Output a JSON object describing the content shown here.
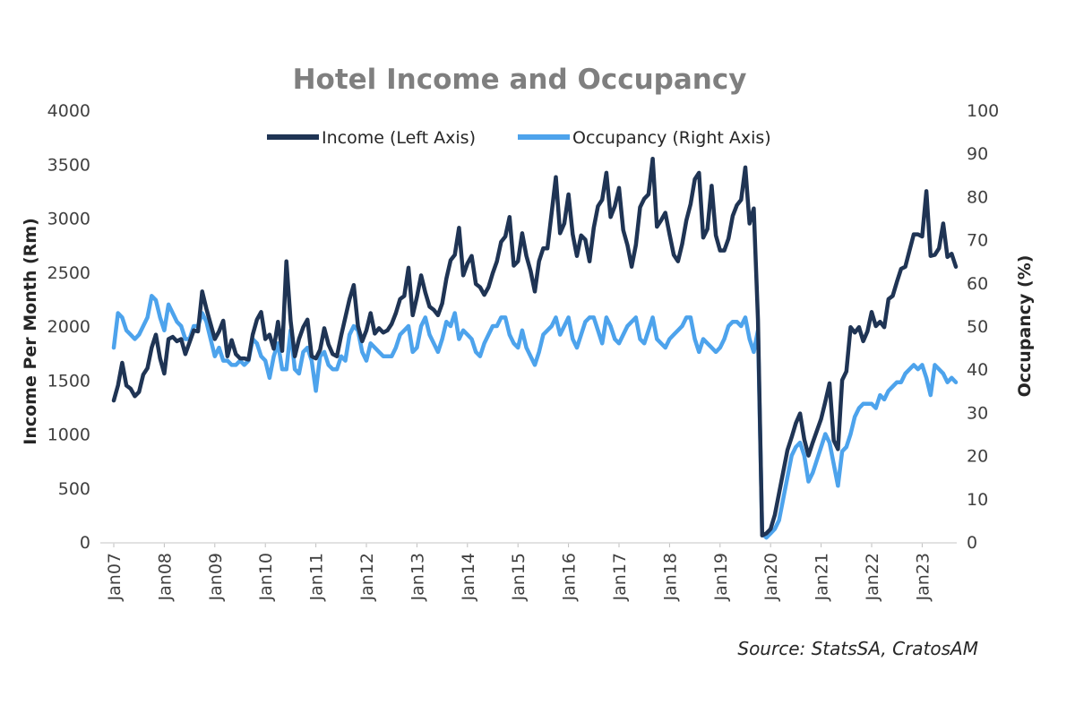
{
  "chart_data": {
    "type": "line",
    "title": "Hotel Income and Occupancy",
    "source": "Source: StatsSA, CratosAM",
    "y_left": {
      "label": "Income Per Month (Rm)",
      "min": 0,
      "max": 4000,
      "ticks": [
        "0",
        "500",
        "1000",
        "1500",
        "2000",
        "2500",
        "3000",
        "3500",
        "4000"
      ]
    },
    "y_right": {
      "label": "Occupancy (%)",
      "min": 0,
      "max": 100,
      "ticks": [
        "0",
        "10",
        "20",
        "30",
        "40",
        "50",
        "60",
        "70",
        "80",
        "90",
        "100"
      ]
    },
    "x_ticks": [
      "Jan07",
      "Jan08",
      "Jan09",
      "Jan10",
      "Jan11",
      "Jan12",
      "Jan13",
      "Jan14",
      "Jan15",
      "Jan16",
      "Jan17",
      "Jan18",
      "Jan19",
      "Jan20",
      "Jan21",
      "Jan22",
      "Jan23"
    ],
    "x_start": "Jan07",
    "frequency": "monthly",
    "legend_position": "top",
    "grid": false,
    "series": [
      {
        "name": "Income (Left Axis)",
        "axis": "left",
        "color": "#1f3454",
        "values": [
          1310,
          1450,
          1660,
          1450,
          1420,
          1350,
          1390,
          1550,
          1610,
          1800,
          1920,
          1700,
          1560,
          1880,
          1900,
          1860,
          1880,
          1740,
          1850,
          1960,
          1950,
          2320,
          2160,
          2020,
          1880,
          1950,
          2050,
          1720,
          1870,
          1740,
          1700,
          1700,
          1690,
          1920,
          2060,
          2130,
          1880,
          1920,
          1790,
          2040,
          1770,
          2600,
          2050,
          1720,
          1880,
          1990,
          2060,
          1720,
          1700,
          1780,
          1980,
          1830,
          1740,
          1720,
          1910,
          2080,
          2250,
          2380,
          2000,
          1860,
          1960,
          2120,
          1930,
          1980,
          1940,
          1960,
          2020,
          2120,
          2250,
          2280,
          2540,
          2100,
          2270,
          2470,
          2310,
          2180,
          2150,
          2100,
          2210,
          2440,
          2610,
          2660,
          2910,
          2470,
          2580,
          2650,
          2390,
          2360,
          2290,
          2360,
          2490,
          2600,
          2780,
          2830,
          3010,
          2560,
          2600,
          2860,
          2650,
          2510,
          2320,
          2600,
          2720,
          2720,
          3050,
          3380,
          2860,
          2950,
          3220,
          2850,
          2650,
          2840,
          2800,
          2600,
          2910,
          3110,
          3170,
          3420,
          3010,
          3110,
          3280,
          2890,
          2750,
          2550,
          2750,
          3100,
          3180,
          3220,
          3550,
          2920,
          2980,
          3050,
          2850,
          2660,
          2600,
          2760,
          2980,
          3130,
          3360,
          3420,
          2820,
          2900,
          3300,
          2840,
          2700,
          2700,
          2810,
          3020,
          3120,
          3170,
          3470,
          2950,
          3090,
          2060,
          60,
          80,
          120,
          250,
          450,
          650,
          850,
          970,
          1100,
          1190,
          950,
          800,
          920,
          1030,
          1140,
          1300,
          1470,
          940,
          860,
          1500,
          1580,
          1990,
          1940,
          1990,
          1860,
          1950,
          2130,
          2000,
          2040,
          1990,
          2250,
          2280,
          2410,
          2530,
          2550,
          2700,
          2850,
          2850,
          2830,
          3250,
          2650,
          2660,
          2720,
          2950,
          2640,
          2670,
          2550
        ]
      },
      {
        "name": "Occupancy (Right Axis)",
        "axis": "right",
        "color": "#4da3ec",
        "values": [
          45,
          53,
          52,
          49,
          48,
          47,
          48,
          50,
          52,
          57,
          56,
          52,
          49,
          55,
          53,
          51,
          50,
          47,
          47,
          50,
          50,
          53,
          51,
          47,
          43,
          45,
          42,
          42,
          41,
          41,
          42,
          41,
          42,
          47,
          46,
          43,
          42,
          38,
          43,
          46,
          40,
          40,
          49,
          40,
          39,
          44,
          45,
          42,
          35,
          43,
          44,
          41,
          40,
          40,
          43,
          42,
          48,
          50,
          49,
          44,
          42,
          46,
          45,
          44,
          43,
          43,
          43,
          45,
          48,
          49,
          50,
          44,
          45,
          50,
          52,
          48,
          46,
          44,
          47,
          51,
          50,
          53,
          47,
          49,
          48,
          47,
          44,
          43,
          46,
          48,
          50,
          50,
          52,
          52,
          48,
          46,
          45,
          49,
          45,
          43,
          41,
          44,
          48,
          49,
          50,
          52,
          48,
          50,
          52,
          47,
          45,
          48,
          51,
          52,
          52,
          49,
          46,
          52,
          50,
          47,
          46,
          48,
          50,
          51,
          52,
          47,
          46,
          49,
          52,
          47,
          46,
          45,
          47,
          48,
          49,
          50,
          52,
          52,
          47,
          44,
          47,
          46,
          45,
          44,
          45,
          47,
          50,
          51,
          51,
          50,
          52,
          47,
          44,
          49,
          2,
          1,
          2,
          3,
          5,
          10,
          15,
          20,
          22,
          23,
          20,
          14,
          16,
          19,
          22,
          25,
          23,
          18,
          13,
          21,
          22,
          25,
          29,
          31,
          32,
          32,
          32,
          31,
          34,
          33,
          35,
          36,
          37,
          37,
          39,
          40,
          41,
          40,
          41,
          38,
          34,
          41,
          40,
          39,
          37,
          38,
          37
        ]
      }
    ]
  }
}
